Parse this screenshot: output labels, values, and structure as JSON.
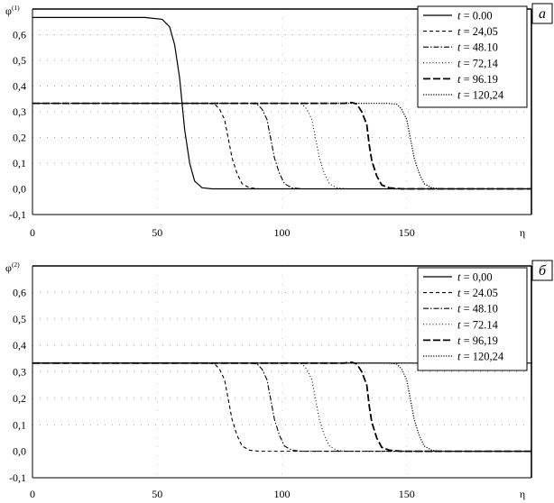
{
  "chart_data": [
    {
      "type": "line",
      "panel_label": "а",
      "ylabel": "φ",
      "ylabel_superscript": "(1)",
      "xlabel": "η",
      "xlim": [
        0,
        200
      ],
      "ylim": [
        -0.1,
        0.7
      ],
      "x_ticks": [
        "0",
        "50",
        "100",
        "150",
        "η"
      ],
      "y_ticks": [
        "-0,1",
        "0,0",
        "0,1",
        "0,2",
        "0,3",
        "0,4",
        "0,5",
        "0,6"
      ],
      "legend_position": "top-right",
      "series": [
        {
          "name_prefix": "t",
          "name_value": " = 0.00",
          "style": "solid",
          "x": [
            0,
            45,
            52,
            55,
            57,
            59,
            60,
            61,
            63,
            65,
            68,
            72,
            200
          ],
          "y": [
            0.667,
            0.667,
            0.66,
            0.63,
            0.56,
            0.43,
            0.33,
            0.23,
            0.1,
            0.03,
            0.004,
            0.0,
            0.0
          ]
        },
        {
          "name_prefix": "t",
          "name_value": " = 24,05",
          "style": "dash",
          "x": [
            0,
            70,
            73,
            75,
            77,
            78,
            79,
            80,
            82,
            84,
            87,
            91,
            200
          ],
          "y": [
            0.333,
            0.333,
            0.33,
            0.31,
            0.27,
            0.22,
            0.17,
            0.12,
            0.06,
            0.02,
            0.004,
            0.0,
            0.0
          ]
        },
        {
          "name_prefix": "t",
          "name_value": " = 48.10",
          "style": "dashdot",
          "x": [
            0,
            87,
            90,
            92,
            94,
            95,
            96,
            97,
            99,
            101,
            104,
            108,
            200
          ],
          "y": [
            0.333,
            0.333,
            0.33,
            0.31,
            0.27,
            0.22,
            0.17,
            0.12,
            0.06,
            0.02,
            0.004,
            0.0,
            0.0
          ]
        },
        {
          "name_prefix": "t",
          "name_value": " = 72,14",
          "style": "dot",
          "x": [
            0,
            105,
            108,
            110,
            112,
            113,
            114,
            115,
            117,
            119,
            122,
            126,
            200
          ],
          "y": [
            0.333,
            0.333,
            0.33,
            0.31,
            0.27,
            0.22,
            0.17,
            0.12,
            0.06,
            0.02,
            0.004,
            0.0,
            0.0
          ]
        },
        {
          "name_prefix": "t",
          "name_value": " = 96.19",
          "style": "longdash",
          "x": [
            0,
            125,
            128,
            130,
            132,
            134,
            135,
            136,
            138,
            140,
            143,
            148,
            200
          ],
          "y": [
            0.333,
            0.333,
            0.336,
            0.33,
            0.3,
            0.25,
            0.17,
            0.11,
            0.05,
            0.015,
            0.004,
            0.0,
            0.0
          ]
        },
        {
          "name_prefix": "t",
          "name_value": " = 120,24",
          "style": "densedot",
          "x": [
            0,
            142,
            146,
            148,
            150,
            151,
            152,
            153,
            155,
            157,
            160,
            164,
            200
          ],
          "y": [
            0.333,
            0.333,
            0.33,
            0.31,
            0.27,
            0.22,
            0.17,
            0.12,
            0.06,
            0.02,
            0.004,
            0.0,
            0.0
          ]
        }
      ]
    },
    {
      "type": "line",
      "panel_label": "б",
      "ylabel": "φ",
      "ylabel_superscript": "(2)",
      "xlabel": "η",
      "xlim": [
        0,
        200
      ],
      "ylim": [
        -0.1,
        0.7
      ],
      "x_ticks": [
        "0",
        "50",
        "100",
        "150",
        "η"
      ],
      "y_ticks": [
        "-0,1",
        "0,0",
        "0,1",
        "0,2",
        "0,3",
        "0,4",
        "0,5",
        "0,6"
      ],
      "legend_position": "top-right",
      "series": [
        {
          "name_prefix": "t",
          "name_value": " = 0,00",
          "style": "solid",
          "x": [
            0,
            200
          ],
          "y": [
            0.333,
            0.333
          ]
        },
        {
          "name_prefix": "t",
          "name_value": " = 24.05",
          "style": "dash",
          "x": [
            0,
            70,
            73,
            75,
            77,
            78,
            79,
            80,
            82,
            84,
            87,
            91,
            200
          ],
          "y": [
            0.333,
            0.333,
            0.33,
            0.31,
            0.27,
            0.22,
            0.17,
            0.12,
            0.06,
            0.02,
            0.004,
            0.0,
            0.0
          ]
        },
        {
          "name_prefix": "t",
          "name_value": " = 48.10",
          "style": "dashdot",
          "x": [
            0,
            87,
            90,
            92,
            94,
            95,
            96,
            97,
            99,
            101,
            104,
            108,
            200
          ],
          "y": [
            0.333,
            0.333,
            0.33,
            0.31,
            0.27,
            0.22,
            0.17,
            0.12,
            0.06,
            0.02,
            0.004,
            0.0,
            0.0
          ]
        },
        {
          "name_prefix": "t",
          "name_value": " = 72.14",
          "style": "dot",
          "x": [
            0,
            105,
            108,
            110,
            112,
            113,
            114,
            115,
            117,
            119,
            122,
            126,
            200
          ],
          "y": [
            0.333,
            0.333,
            0.33,
            0.31,
            0.27,
            0.22,
            0.17,
            0.12,
            0.06,
            0.02,
            0.004,
            0.0,
            0.0
          ]
        },
        {
          "name_prefix": "t",
          "name_value": " = 96,19",
          "style": "longdash",
          "x": [
            0,
            125,
            128,
            130,
            132,
            134,
            135,
            136,
            138,
            140,
            143,
            148,
            200
          ],
          "y": [
            0.333,
            0.333,
            0.336,
            0.33,
            0.3,
            0.25,
            0.17,
            0.11,
            0.05,
            0.015,
            0.004,
            0.0,
            0.0
          ]
        },
        {
          "name_prefix": "t",
          "name_value": " = 120,24",
          "style": "densedot",
          "x": [
            0,
            142,
            146,
            148,
            150,
            151,
            152,
            153,
            155,
            157,
            160,
            164,
            200
          ],
          "y": [
            0.333,
            0.333,
            0.33,
            0.31,
            0.27,
            0.22,
            0.17,
            0.12,
            0.06,
            0.02,
            0.004,
            0.0,
            0.0
          ]
        }
      ]
    }
  ]
}
